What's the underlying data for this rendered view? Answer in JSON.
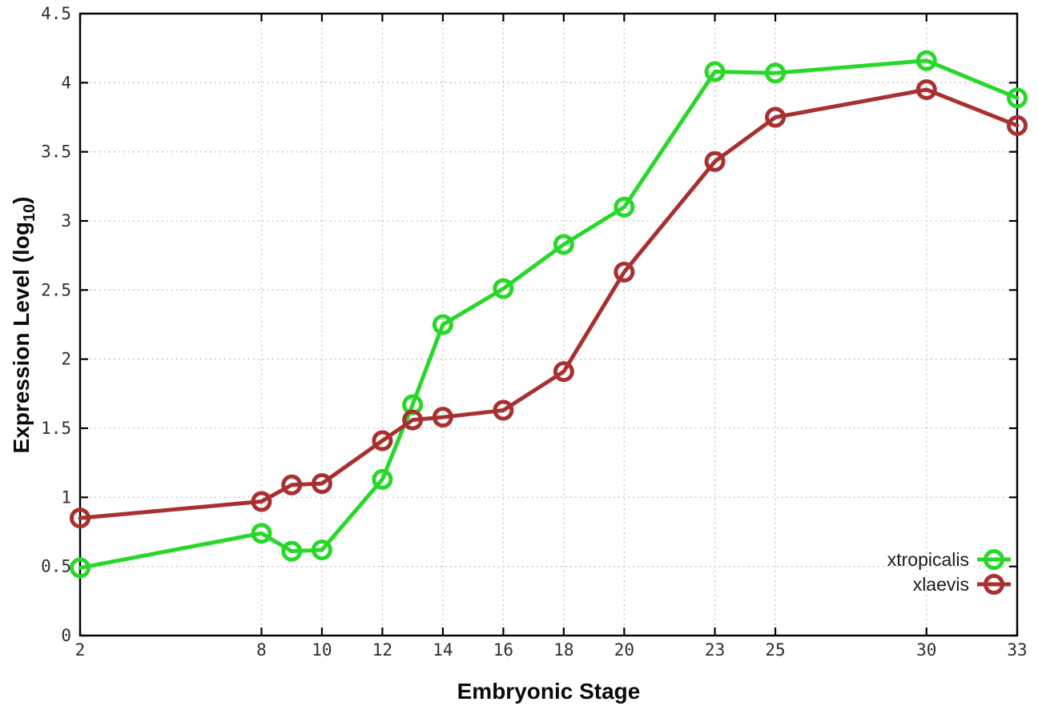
{
  "chart_data": {
    "type": "line",
    "title": "",
    "xlabel": "Embryonic Stage",
    "ylabel": "Expression Level (log10)",
    "ylabel_parts": {
      "prefix": "Expression Level (log",
      "sub": "10",
      "suffix": ")"
    },
    "x": [
      2,
      8,
      9,
      10,
      12,
      13,
      14,
      16,
      18,
      20,
      23,
      25,
      30,
      33
    ],
    "series": [
      {
        "name": "xtropicalis",
        "color": "#28d828",
        "values": [
          0.49,
          0.74,
          0.61,
          0.62,
          1.13,
          1.67,
          2.25,
          2.51,
          2.83,
          3.1,
          4.08,
          4.07,
          4.16,
          3.89
        ]
      },
      {
        "name": "xlaevis",
        "color": "#a93030",
        "values": [
          0.85,
          0.97,
          1.09,
          1.1,
          1.41,
          1.56,
          1.58,
          1.63,
          1.91,
          2.63,
          3.43,
          3.75,
          3.95,
          3.69
        ]
      }
    ],
    "xlim": [
      2,
      33
    ],
    "ylim": [
      0,
      4.5
    ],
    "xticks": [
      2,
      8,
      10,
      12,
      14,
      16,
      18,
      20,
      23,
      25,
      30,
      33
    ],
    "xtick_labels": [
      "2",
      "8",
      "10",
      "12",
      "14",
      "16",
      "18",
      "20",
      "23",
      "25",
      "30",
      "33"
    ],
    "yticks": [
      0,
      0.5,
      1,
      1.5,
      2,
      2.5,
      3,
      3.5,
      4,
      4.5
    ],
    "ytick_labels": [
      "0",
      "0.5",
      "1",
      "1.5",
      "2",
      "2.5",
      "3",
      "3.5",
      "4",
      "4.5"
    ],
    "grid": true,
    "grid_style": "dotted",
    "legend_position": "inside-right-bottom",
    "marker": "open-circle",
    "colors": {
      "background": "#ffffff",
      "axis": "#000000",
      "grid": "#b4b4b4",
      "tick_text": "#2e2e2e",
      "label_text": "#0b0b0b"
    }
  }
}
